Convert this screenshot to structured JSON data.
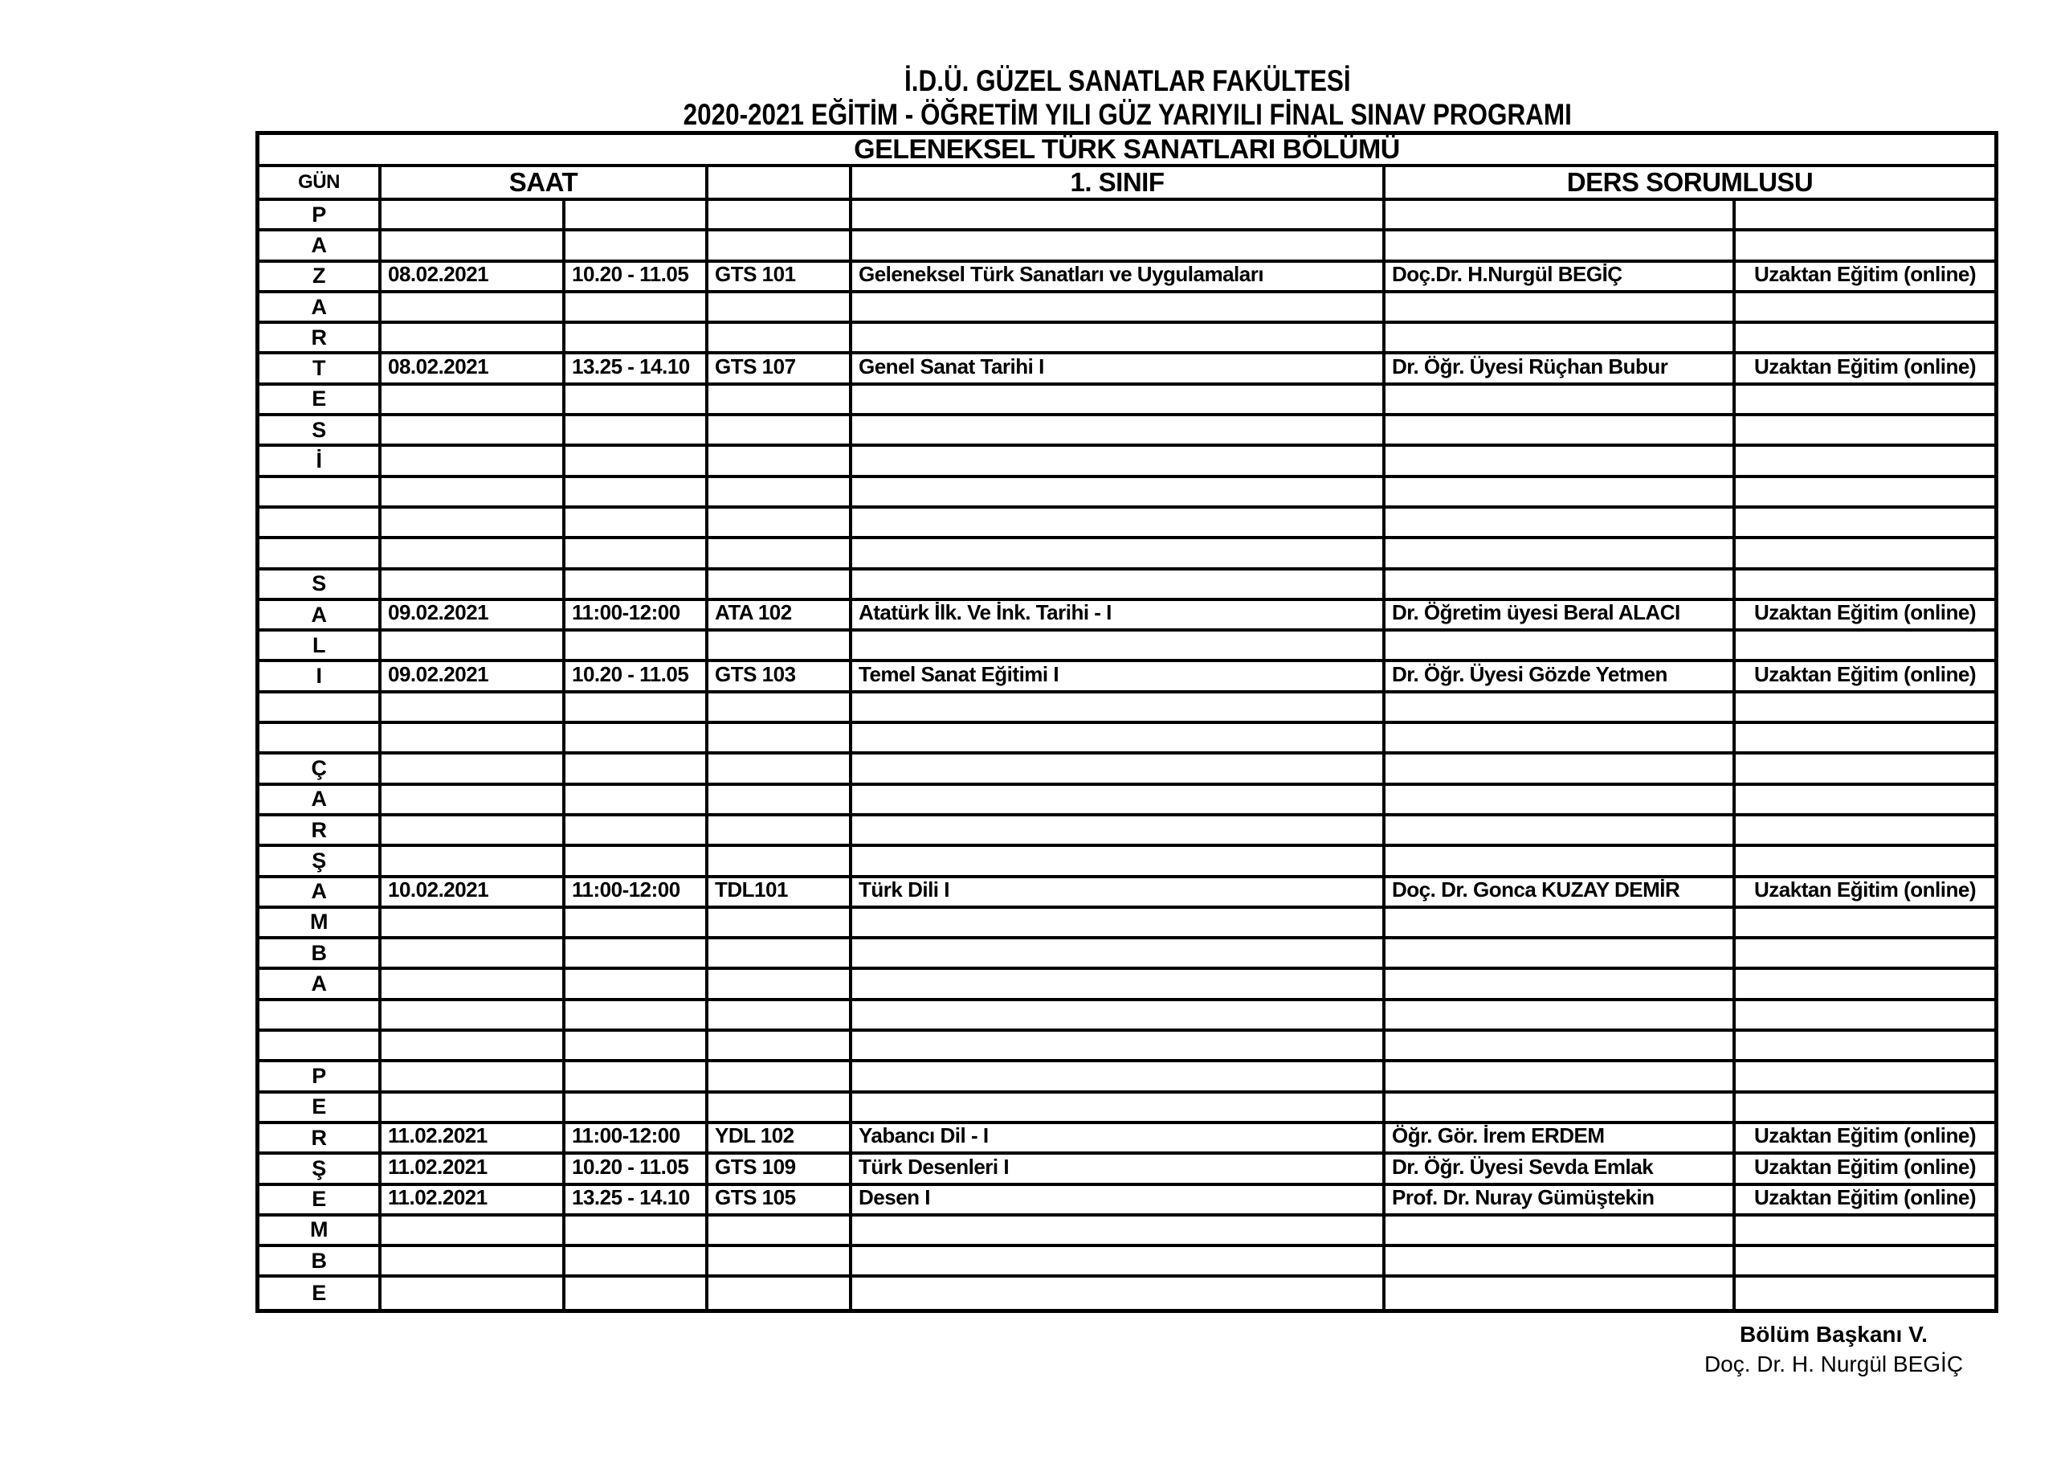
{
  "page": {
    "title_line1": "İ.D.Ü. GÜZEL SANATLAR FAKÜLTESİ",
    "title_line2": "2020-2021  EĞİTİM - ÖĞRETİM YILI  GÜZ YARIYILI FİNAL SINAV  PROGRAMI"
  },
  "colors": {
    "text": "#000000",
    "border": "#000000",
    "background": "#ffffff"
  },
  "table": {
    "banner": "GELENEKSEL TÜRK SANATLARI BÖLÜMÜ",
    "headers": {
      "gun": "GÜN",
      "saat": "SAAT",
      "code_blank": "",
      "sinif": "1. SINIF",
      "sorumlu": "DERS SORUMLUSU"
    },
    "rows": [
      {
        "day_letter": "P",
        "date": "",
        "time": "",
        "code": "",
        "course": "",
        "instructor": "",
        "mode": ""
      },
      {
        "day_letter": "A",
        "date": "",
        "time": "",
        "code": "",
        "course": "",
        "instructor": "",
        "mode": ""
      },
      {
        "day_letter": "Z",
        "date": "08.02.2021",
        "time": "10.20 - 11.05",
        "code": "GTS 101",
        "course": "Geleneksel Türk Sanatları ve Uygulamaları",
        "instructor": "Doç.Dr. H.Nurgül BEGİÇ",
        "mode": "Uzaktan Eğitim (online)"
      },
      {
        "day_letter": "A",
        "date": "",
        "time": "",
        "code": "",
        "course": "",
        "instructor": "",
        "mode": ""
      },
      {
        "day_letter": "R",
        "date": "",
        "time": "",
        "code": "",
        "course": "",
        "instructor": "",
        "mode": ""
      },
      {
        "day_letter": "T",
        "date": "08.02.2021",
        "time": "13.25 - 14.10",
        "code": "GTS 107",
        "course": "Genel Sanat Tarihi I",
        "instructor": "Dr. Öğr. Üyesi Rüçhan Bubur",
        "mode": "Uzaktan Eğitim (online)"
      },
      {
        "day_letter": "E",
        "date": "",
        "time": "",
        "code": "",
        "course": "",
        "instructor": "",
        "mode": ""
      },
      {
        "day_letter": "S",
        "date": "",
        "time": "",
        "code": "",
        "course": "",
        "instructor": "",
        "mode": ""
      },
      {
        "day_letter": "İ",
        "date": "",
        "time": "",
        "code": "",
        "course": "",
        "instructor": "",
        "mode": ""
      },
      {
        "day_letter": "",
        "date": "",
        "time": "",
        "code": "",
        "course": "",
        "instructor": "",
        "mode": ""
      },
      {
        "day_letter": "",
        "date": "",
        "time": "",
        "code": "",
        "course": "",
        "instructor": "",
        "mode": ""
      },
      {
        "day_letter": "",
        "date": "",
        "time": "",
        "code": "",
        "course": "",
        "instructor": "",
        "mode": ""
      },
      {
        "day_letter": "S",
        "date": "",
        "time": "",
        "code": "",
        "course": "",
        "instructor": "",
        "mode": ""
      },
      {
        "day_letter": "A",
        "date": "09.02.2021",
        "time": "11:00-12:00",
        "code": "ATA 102",
        "course": "Atatürk İlk. Ve İnk. Tarihi - I",
        "instructor": "Dr. Öğretim üyesi Beral ALACI",
        "mode": "Uzaktan Eğitim (online)"
      },
      {
        "day_letter": "L",
        "date": "",
        "time": "",
        "code": "",
        "course": "",
        "instructor": "",
        "mode": ""
      },
      {
        "day_letter": "I",
        "date": "09.02.2021",
        "time": "10.20 - 11.05",
        "code": "GTS 103",
        "course": "Temel Sanat Eğitimi I",
        "instructor": "Dr. Öğr. Üyesi Gözde Yetmen",
        "mode": "Uzaktan Eğitim (online)"
      },
      {
        "day_letter": "",
        "date": "",
        "time": "",
        "code": "",
        "course": "",
        "instructor": "",
        "mode": ""
      },
      {
        "day_letter": "",
        "date": "",
        "time": "",
        "code": "",
        "course": "",
        "instructor": "",
        "mode": ""
      },
      {
        "day_letter": "Ç",
        "date": "",
        "time": "",
        "code": "",
        "course": "",
        "instructor": "",
        "mode": ""
      },
      {
        "day_letter": "A",
        "date": "",
        "time": "",
        "code": "",
        "course": "",
        "instructor": "",
        "mode": ""
      },
      {
        "day_letter": "R",
        "date": "",
        "time": "",
        "code": "",
        "course": "",
        "instructor": "",
        "mode": ""
      },
      {
        "day_letter": "Ş",
        "date": "",
        "time": "",
        "code": "",
        "course": "",
        "instructor": "",
        "mode": ""
      },
      {
        "day_letter": "A",
        "date": "10.02.2021",
        "time": "11:00-12:00",
        "code": "TDL101",
        "course": "Türk Dili I",
        "instructor": "Doç. Dr. Gonca KUZAY DEMİR",
        "mode": "Uzaktan Eğitim (online)"
      },
      {
        "day_letter": "M",
        "date": "",
        "time": "",
        "code": "",
        "course": "",
        "instructor": "",
        "mode": ""
      },
      {
        "day_letter": "B",
        "date": "",
        "time": "",
        "code": "",
        "course": "",
        "instructor": "",
        "mode": ""
      },
      {
        "day_letter": "A",
        "date": "",
        "time": "",
        "code": "",
        "course": "",
        "instructor": "",
        "mode": ""
      },
      {
        "day_letter": "",
        "date": "",
        "time": "",
        "code": "",
        "course": "",
        "instructor": "",
        "mode": ""
      },
      {
        "day_letter": "",
        "date": "",
        "time": "",
        "code": "",
        "course": "",
        "instructor": "",
        "mode": ""
      },
      {
        "day_letter": "P",
        "date": "",
        "time": "",
        "code": "",
        "course": "",
        "instructor": "",
        "mode": ""
      },
      {
        "day_letter": "E",
        "date": "",
        "time": "",
        "code": "",
        "course": "",
        "instructor": "",
        "mode": ""
      },
      {
        "day_letter": "R",
        "date": "11.02.2021",
        "time": "11:00-12:00",
        "code": "YDL 102",
        "course": "Yabancı Dil - I",
        "instructor": "Öğr. Gör. İrem ERDEM",
        "mode": "Uzaktan Eğitim (online)"
      },
      {
        "day_letter": "Ş",
        "date": "11.02.2021",
        "time": "10.20 - 11.05",
        "code": "GTS 109",
        "course": "Türk Desenleri I",
        "instructor": "Dr. Öğr. Üyesi Sevda Emlak",
        "mode": "Uzaktan Eğitim (online)"
      },
      {
        "day_letter": "E",
        "date": "11.02.2021",
        "time": "13.25 - 14.10",
        "code": "GTS 105",
        "course": "Desen I",
        "instructor": "Prof. Dr. Nuray Gümüştekin",
        "mode": "Uzaktan Eğitim (online)"
      },
      {
        "day_letter": "M",
        "date": "",
        "time": "",
        "code": "",
        "course": "",
        "instructor": "",
        "mode": ""
      },
      {
        "day_letter": "B",
        "date": "",
        "time": "",
        "code": "",
        "course": "",
        "instructor": "",
        "mode": ""
      },
      {
        "day_letter": "E",
        "date": "",
        "time": "",
        "code": "",
        "course": "",
        "instructor": "",
        "mode": ""
      }
    ]
  },
  "footer": {
    "line1": "Bölüm Başkanı V.",
    "line2": "Doç. Dr. H. Nurgül BEGİÇ"
  }
}
